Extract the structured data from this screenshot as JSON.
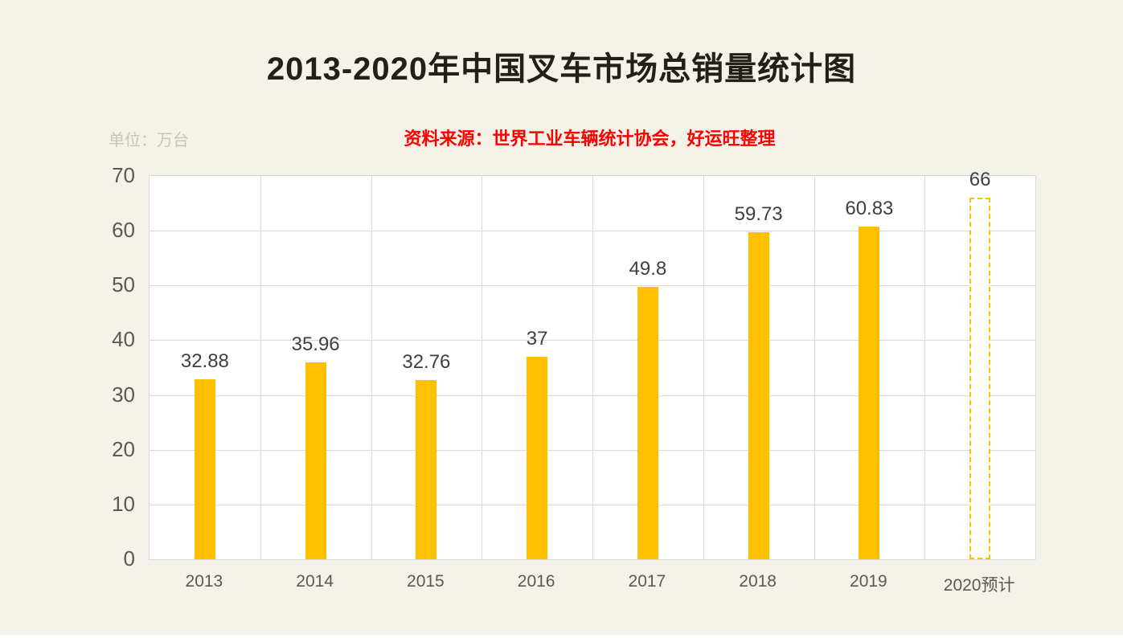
{
  "page": {
    "title": "2013-2020年中国叉车市场总销量统计图",
    "unit_label": "单位：万台",
    "source_note": "资料来源：世界工业车辆统计协会，好运旺整理"
  },
  "chart_data": {
    "type": "bar",
    "title": "2013-2020年中国叉车市场总销量统计图",
    "unit": "万台",
    "categories": [
      "2013",
      "2014",
      "2015",
      "2016",
      "2017",
      "2018",
      "2019",
      "2020预计"
    ],
    "values": [
      32.88,
      35.96,
      32.76,
      37,
      49.8,
      59.73,
      60.83,
      66
    ],
    "value_labels": [
      "32.88",
      "35.96",
      "32.76",
      "37",
      "49.8",
      "59.73",
      "60.83",
      "66"
    ],
    "forecast_index": 7,
    "ylim": [
      0,
      70
    ],
    "yticks": [
      0,
      10,
      20,
      30,
      40,
      50,
      60,
      70
    ],
    "grid": true,
    "legend": "none",
    "colors": {
      "bar": "#FFC000",
      "forecast_bar_border": "#FFC000",
      "value_label": "#3F3F3F",
      "axis_label": "#595959",
      "gridline": "#D9D9D9",
      "background": "#F5F3E9",
      "plot_background": "#FFFFFF",
      "title": "#21201B",
      "source_note": "#FF0000",
      "unit_label": "#C7C4B7"
    }
  }
}
